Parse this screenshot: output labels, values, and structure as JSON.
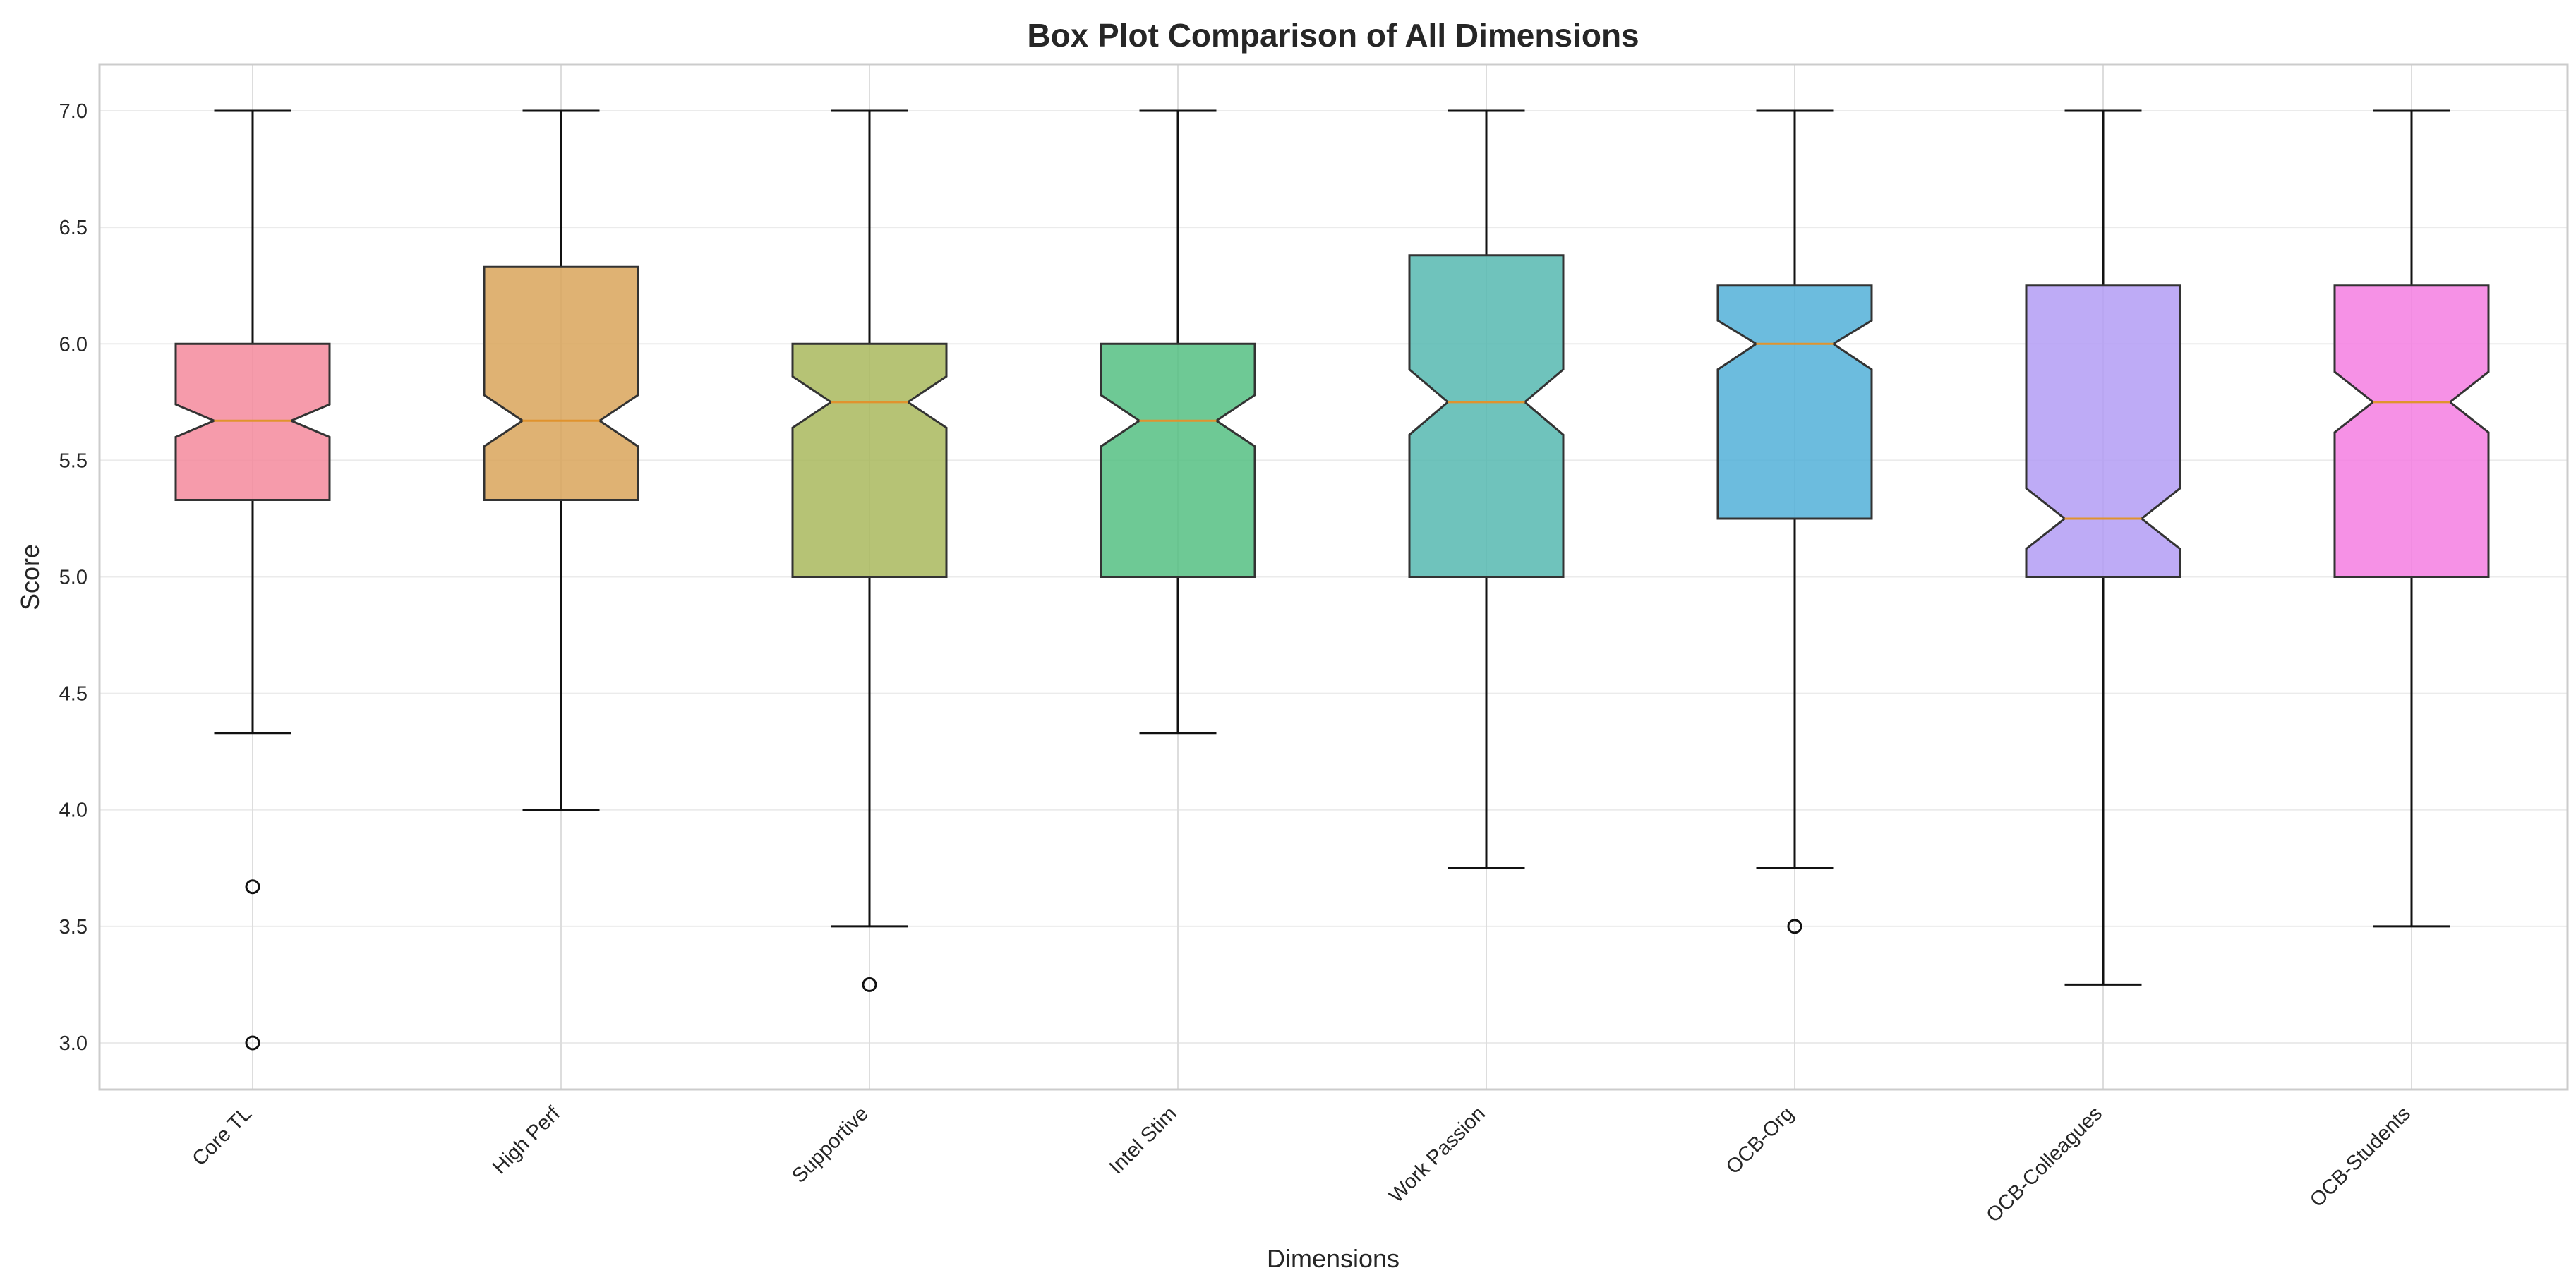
{
  "chart_data": {
    "type": "boxplot",
    "title": "Box Plot Comparison of All Dimensions",
    "xlabel": "Dimensions",
    "ylabel": "Score",
    "ylim": [
      2.8,
      7.2
    ],
    "yticks": [
      "3.0",
      "3.5",
      "4.0",
      "4.5",
      "5.0",
      "5.5",
      "6.0",
      "6.5",
      "7.0"
    ],
    "grid": true,
    "notched": true,
    "categories": [
      "Core TL",
      "High Perf",
      "Supportive",
      "Intel Stim",
      "Work Passion",
      "OCB-Org",
      "OCB-Colleagues",
      "OCB-Students"
    ],
    "boxes": [
      {
        "name": "Core TL",
        "whisker_low": 4.33,
        "q1": 5.33,
        "median": 5.67,
        "q3": 6.0,
        "whisker_high": 7.0,
        "notch_low": 5.6,
        "notch_high": 5.74,
        "outliers": [
          3.67,
          3.0
        ],
        "color": "#f48a9c"
      },
      {
        "name": "High Perf",
        "whisker_low": 4.0,
        "q1": 5.33,
        "median": 5.67,
        "q3": 6.33,
        "whisker_high": 7.0,
        "notch_low": 5.56,
        "notch_high": 5.78,
        "outliers": [],
        "color": "#d9a45b"
      },
      {
        "name": "Supportive",
        "whisker_low": 3.5,
        "q1": 5.0,
        "median": 5.75,
        "q3": 6.0,
        "whisker_high": 7.0,
        "notch_low": 5.64,
        "notch_high": 5.86,
        "outliers": [
          3.25
        ],
        "color": "#a9b85d"
      },
      {
        "name": "Intel Stim",
        "whisker_low": 4.33,
        "q1": 5.0,
        "median": 5.67,
        "q3": 6.0,
        "whisker_high": 7.0,
        "notch_low": 5.56,
        "notch_high": 5.78,
        "outliers": [],
        "color": "#55c083"
      },
      {
        "name": "Work Passion",
        "whisker_low": 3.75,
        "q1": 5.0,
        "median": 5.75,
        "q3": 6.38,
        "whisker_high": 7.0,
        "notch_low": 5.61,
        "notch_high": 5.89,
        "outliers": [],
        "color": "#56b8b0"
      },
      {
        "name": "OCB-Org",
        "whisker_low": 3.75,
        "q1": 5.25,
        "median": 6.0,
        "q3": 6.25,
        "whisker_high": 7.0,
        "notch_low": 5.89,
        "notch_high": 6.1,
        "outliers": [
          3.5
        ],
        "color": "#52b0d8"
      },
      {
        "name": "OCB-Colleagues",
        "whisker_low": 3.25,
        "q1": 5.0,
        "median": 5.25,
        "q3": 6.25,
        "whisker_high": 7.0,
        "notch_low": 5.12,
        "notch_high": 5.38,
        "outliers": [],
        "color": "#b39cf4"
      },
      {
        "name": "OCB-Students",
        "whisker_low": 3.5,
        "q1": 5.0,
        "median": 5.75,
        "q3": 6.25,
        "whisker_high": 7.0,
        "notch_low": 5.62,
        "notch_high": 5.88,
        "outliers": [],
        "color": "#f47ee2"
      }
    ],
    "median_color": "#e0932e"
  }
}
